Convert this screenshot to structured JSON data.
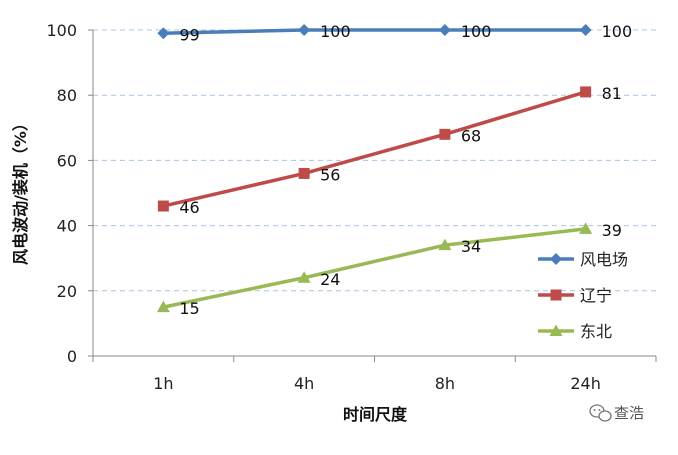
{
  "chart_data": {
    "type": "line",
    "categories": [
      "1h",
      "4h",
      "8h",
      "24h"
    ],
    "series": [
      {
        "name": "风电场",
        "values": [
          99,
          100,
          100,
          100
        ],
        "color": "#4a7ebb",
        "marker": "diamond"
      },
      {
        "name": "辽宁",
        "values": [
          46,
          56,
          68,
          81
        ],
        "color": "#be4b48",
        "marker": "square"
      },
      {
        "name": "东北",
        "values": [
          15,
          24,
          34,
          39
        ],
        "color": "#98b954",
        "marker": "triangle"
      }
    ],
    "xlabel": "时间尺度",
    "ylabel": "风电波动/装机（%）",
    "ylim": [
      0,
      100
    ],
    "yticks": [
      0,
      20,
      40,
      60,
      80,
      100
    ],
    "grid": "horizontal-dashed",
    "legend": "right"
  },
  "watermark": {
    "text": "查浩",
    "icon": "wechat-icon"
  }
}
